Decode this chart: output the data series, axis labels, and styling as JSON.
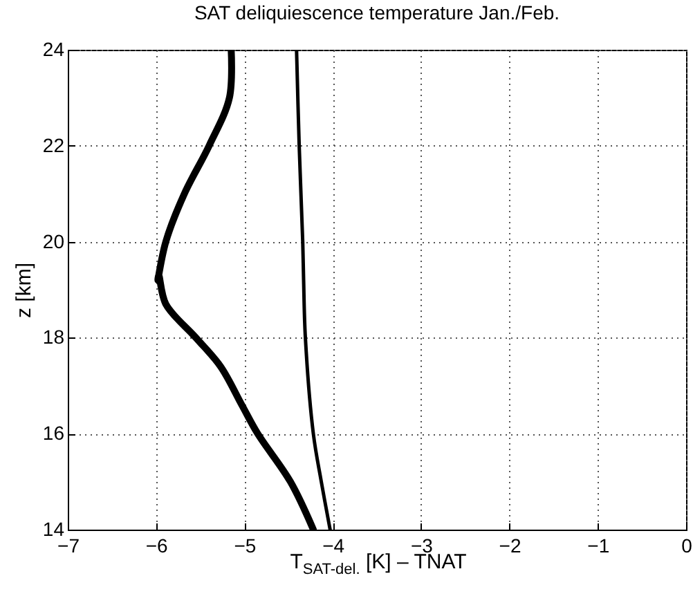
{
  "chart_data": {
    "type": "line",
    "title": "SAT deliquiescence temperature Jan./Feb.",
    "xlabel": "T$_{SAT-del.}$ [K] – TNAT",
    "ylabel": "z [km]",
    "series": [
      {
        "color": "#000000",
        "x": [
          -5.15,
          -5.17,
          -5.4,
          -5.68,
          -5.89,
          -5.98,
          -5.97,
          -5.89,
          -5.55,
          -5.27,
          -5.03,
          -4.85,
          -4.48,
          -4.22
        ],
        "values": [
          24,
          23,
          22,
          21,
          20,
          19.2,
          19.3,
          18.7,
          18,
          17.4,
          16.6,
          16,
          15,
          14
        ]
      },
      {
        "color": "#000000",
        "x": [
          -4.41,
          -4.38,
          -4.34,
          -4.33,
          -4.31,
          -4.22,
          -4.13,
          -4.03
        ],
        "values": [
          24,
          22,
          20,
          19.2,
          18,
          16,
          15,
          14
        ]
      }
    ],
    "xlim": [
      -7,
      0
    ],
    "xticks": [
      -7,
      -6,
      -5,
      -4,
      -3,
      -2,
      -1,
      0
    ],
    "ylim": [
      14,
      24
    ],
    "yticks": [
      14,
      16,
      18,
      20,
      22,
      24
    ],
    "grid": true,
    "line_style": "solid"
  }
}
